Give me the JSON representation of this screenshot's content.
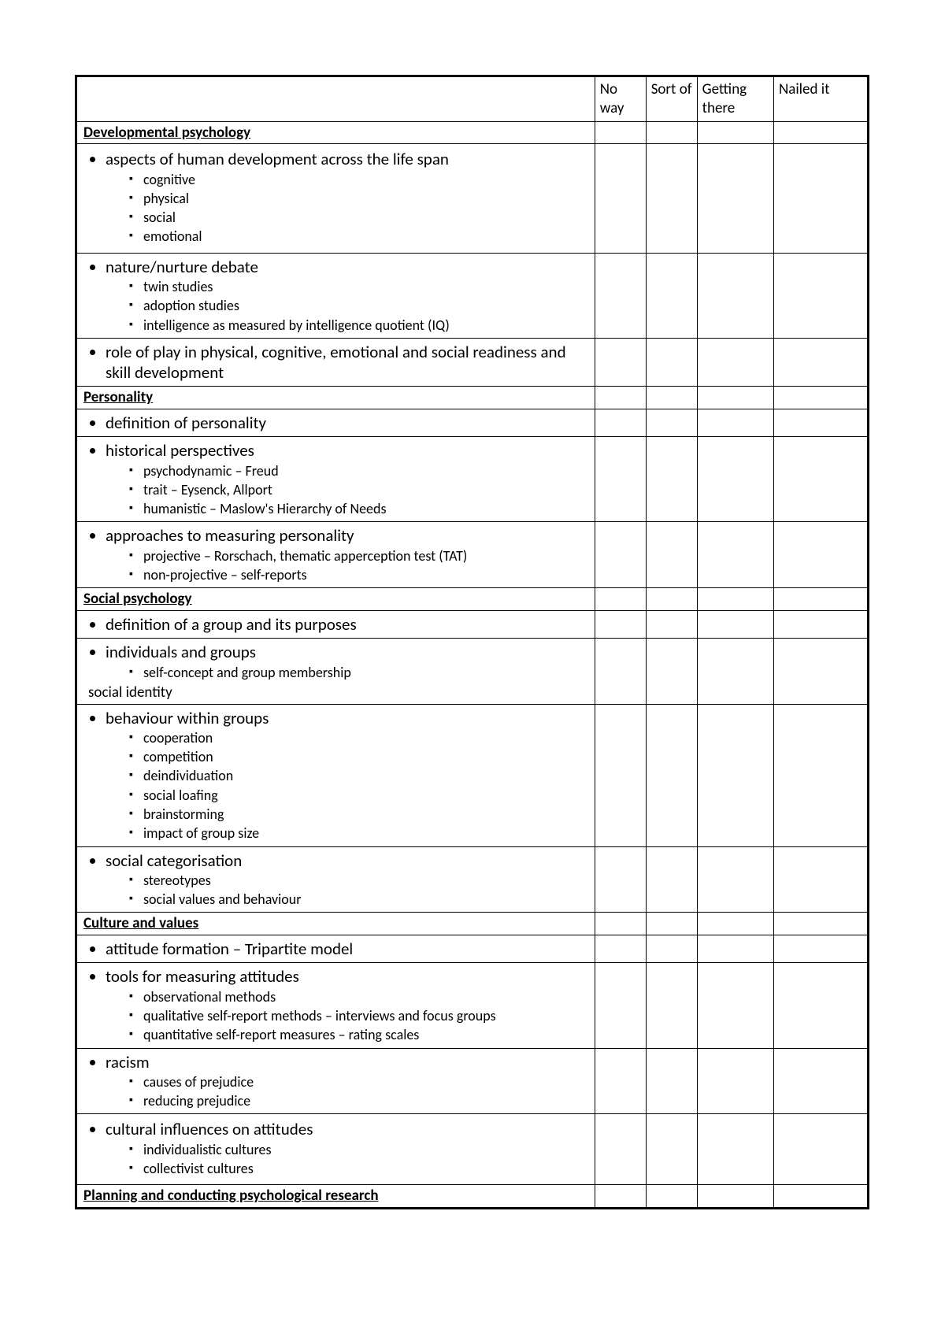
{
  "columns": {
    "a": "No way",
    "b": "Sort of",
    "c": "Getting there",
    "d": "Nailed it"
  },
  "rows": [
    {
      "type": "section",
      "text": "Developmental psychology"
    },
    {
      "type": "item",
      "text": "aspects of human development across the life span",
      "sub": [
        "cognitive",
        "physical",
        "social",
        "emotional"
      ],
      "pad": true
    },
    {
      "type": "item",
      "text": "nature/nurture debate",
      "sub": [
        "twin studies",
        "adoption studies",
        "intelligence as measured by intelligence quotient (IQ)"
      ]
    },
    {
      "type": "item",
      "text": "role of play in physical, cognitive, emotional and social readiness and skill development"
    },
    {
      "type": "section",
      "text": "Personality"
    },
    {
      "type": "item",
      "text": "definition of personality"
    },
    {
      "type": "item",
      "text": "historical perspectives",
      "sub": [
        "psychodynamic – Freud",
        "trait – Eysenck, Allport",
        "humanistic – Maslow's Hierarchy of Needs"
      ]
    },
    {
      "type": "item",
      "text": "approaches to measuring personality",
      "sub": [
        "projective – Rorschach, thematic apperception test (TAT)",
        "non-projective – self-reports"
      ]
    },
    {
      "type": "section",
      "text": "Social psychology"
    },
    {
      "type": "item",
      "text": "definition of a group and its purposes"
    },
    {
      "type": "item",
      "text": "individuals and groups",
      "sub": [
        "self-concept and group membership"
      ],
      "suffix": "social identity"
    },
    {
      "type": "item",
      "text": "behaviour within groups",
      "sub": [
        "cooperation",
        "competition",
        "deindividuation",
        "social loafing",
        "brainstorming",
        "impact of group size"
      ]
    },
    {
      "type": "item",
      "text": "social categorisation",
      "sub": [
        "stereotypes",
        "social values and behaviour"
      ]
    },
    {
      "type": "section",
      "text": "Culture and values"
    },
    {
      "type": "item",
      "text": "attitude formation – Tripartite model"
    },
    {
      "type": "item",
      "text": "tools for measuring attitudes",
      "sub": [
        "observational methods",
        "qualitative self-report methods – interviews and focus groups",
        "quantitative self-report measures – rating scales"
      ]
    },
    {
      "type": "item",
      "text": "racism",
      "sub": [
        "causes of prejudice",
        "reducing prejudice"
      ]
    },
    {
      "type": "item",
      "text": "cultural influences on attitudes",
      "sub": [
        "individualistic cultures",
        "collectivist cultures"
      ],
      "pad": true
    },
    {
      "type": "section",
      "text": "Planning and conducting psychological research"
    }
  ]
}
